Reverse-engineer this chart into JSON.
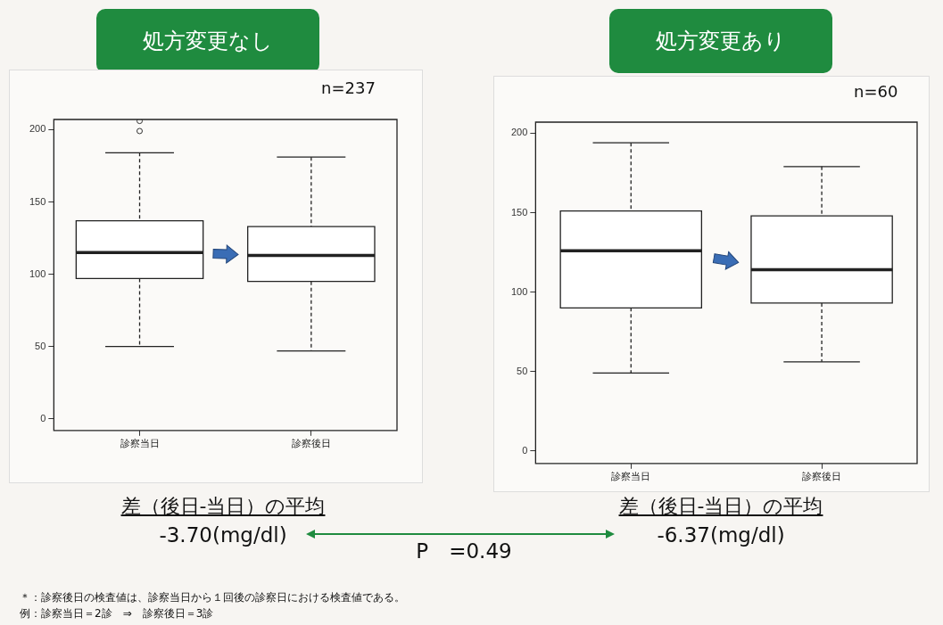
{
  "chart_data": [
    {
      "type": "box",
      "title": "処方変更なし",
      "categories": [
        "診察当日",
        "診察後日"
      ],
      "boxes": [
        {
          "low": 50,
          "q1": 97,
          "median": 115,
          "q3": 137,
          "high": 184,
          "outliers": [
            199,
            206
          ]
        },
        {
          "low": 47,
          "q1": 95,
          "median": 113,
          "q3": 133,
          "high": 181
        }
      ],
      "ylim": [
        -8,
        207
      ],
      "yticks": [
        0,
        50,
        100,
        150,
        200
      ],
      "annotations": [
        "n=237",
        "差（後日-当日）の平均",
        "-3.70(mg/dl)"
      ]
    },
    {
      "type": "box",
      "title": "処方変更あり",
      "categories": [
        "診察当日",
        "診察後日"
      ],
      "boxes": [
        {
          "low": 49,
          "q1": 90,
          "median": 126,
          "q3": 151,
          "high": 194
        },
        {
          "low": 56,
          "q1": 93,
          "median": 114,
          "q3": 148,
          "high": 179
        }
      ],
      "ylim": [
        -8,
        207
      ],
      "yticks": [
        0,
        50,
        100,
        150,
        200
      ],
      "annotations": [
        "n=60",
        "差（後日-当日）の平均",
        "-6.37(mg/dl)"
      ]
    },
    {
      "type": "other",
      "annotations": [
        "P　=0.49",
        "＊：診察後日の検査値は、診察当日から１回後の診察日における検査値である。",
        "例：診察当日＝2診　⇒　診察後日＝3診"
      ]
    }
  ]
}
